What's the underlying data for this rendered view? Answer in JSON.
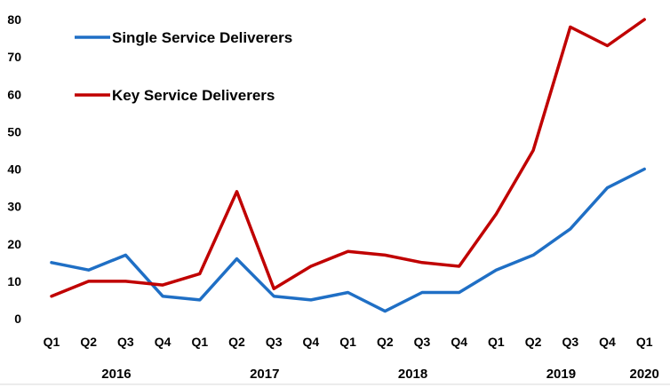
{
  "chart_data": {
    "type": "line",
    "title": "",
    "xlabel": "",
    "ylabel": "",
    "ylim": [
      0,
      80
    ],
    "yticks": [
      0,
      10,
      20,
      30,
      40,
      50,
      60,
      70,
      80
    ],
    "grid": false,
    "legend_position": "top-left",
    "categories": [
      "Q1",
      "Q2",
      "Q3",
      "Q4",
      "Q1",
      "Q2",
      "Q3",
      "Q4",
      "Q1",
      "Q2",
      "Q3",
      "Q4",
      "Q1",
      "Q2",
      "Q3",
      "Q4",
      "Q1"
    ],
    "years": [
      {
        "label": "2016",
        "from": 0,
        "to": 3
      },
      {
        "label": "2017",
        "from": 4,
        "to": 7
      },
      {
        "label": "2018",
        "from": 8,
        "to": 11
      },
      {
        "label": "2019",
        "from": 12,
        "to": 15
      },
      {
        "label": "2020",
        "from": 16,
        "to": 16
      }
    ],
    "series": [
      {
        "name": "Single Service Deliverers",
        "color": "#1f6fc5",
        "values": [
          15,
          13,
          17,
          6,
          5,
          16,
          6,
          5,
          7,
          2,
          7,
          7,
          13,
          17,
          24,
          35,
          40
        ]
      },
      {
        "name": "Key Service Deliverers",
        "color": "#c00000",
        "values": [
          6,
          10,
          10,
          9,
          12,
          34,
          8,
          14,
          18,
          17,
          15,
          14,
          28,
          45,
          78,
          73,
          80
        ]
      }
    ]
  }
}
